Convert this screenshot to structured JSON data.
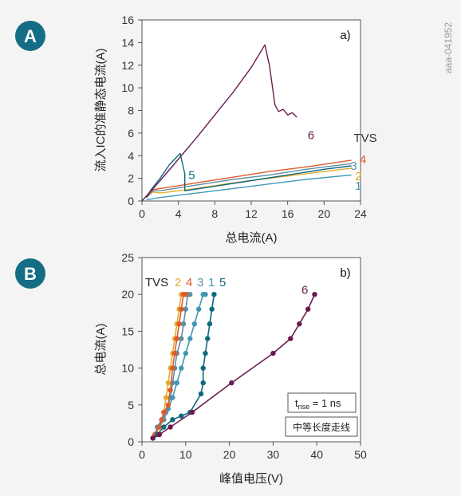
{
  "watermark": "aaa-041952",
  "badges": {
    "a": "A",
    "b": "B"
  },
  "colors": {
    "tvs1": "#3f98b3",
    "tvs2": "#e3ac2b",
    "tvs3": "#5d90a5",
    "tvs4": "#e05a2c",
    "tvs5": "#0e6a7c",
    "tvs6": "#6a1b52",
    "badge": "#146d84"
  },
  "chart_data": [
    {
      "type": "line",
      "panel_tag": "a)",
      "xlabel": "总电流(A)",
      "ylabel": "流入IC的准静态电流(A)",
      "xlim": [
        0,
        24
      ],
      "ylim": [
        0,
        16
      ],
      "xticks": [
        "0",
        "4",
        "8",
        "12",
        "16",
        "20",
        "24"
      ],
      "yticks": [
        "0",
        "2",
        "4",
        "6",
        "8",
        "10",
        "12",
        "14",
        "16"
      ],
      "legend_title": "TVS",
      "series": [
        {
          "name": "1",
          "color_key": "tvs1",
          "x": [
            0.5,
            2,
            6,
            10,
            14,
            18,
            23
          ],
          "y": [
            0.1,
            0.3,
            0.7,
            1.1,
            1.5,
            1.9,
            2.3
          ]
        },
        {
          "name": "2",
          "color_key": "tvs2",
          "x": [
            0.5,
            1.2,
            2,
            6,
            10,
            14,
            18,
            23
          ],
          "y": [
            0.3,
            0.8,
            0.7,
            1.1,
            1.6,
            2.0,
            2.4,
            2.9
          ]
        },
        {
          "name": "3",
          "color_key": "tvs3",
          "x": [
            0.5,
            1.2,
            2,
            6,
            10,
            14,
            18,
            23
          ],
          "y": [
            0.3,
            0.9,
            0.9,
            1.4,
            1.9,
            2.3,
            2.8,
            3.3
          ]
        },
        {
          "name": "4",
          "color_key": "tvs4",
          "x": [
            0.5,
            1.2,
            2,
            6,
            10,
            14,
            18,
            23
          ],
          "y": [
            0.4,
            1.0,
            1.1,
            1.6,
            2.1,
            2.6,
            3.0,
            3.6
          ]
        },
        {
          "name": "5",
          "color_key": "tvs5",
          "x": [
            0.5,
            1,
            2,
            3,
            4.2,
            4.7,
            4.7,
            8,
            12,
            16,
            20,
            23
          ],
          "y": [
            0.3,
            1.0,
            2.0,
            3.2,
            4.2,
            2.4,
            0.9,
            1.3,
            1.8,
            2.3,
            2.8,
            3.1
          ]
        },
        {
          "name": "6",
          "color_key": "tvs6",
          "x": [
            0,
            2,
            4,
            6,
            8,
            10,
            12,
            13.5,
            14,
            14.6,
            15,
            15.5,
            16,
            16.5,
            17
          ],
          "y": [
            0,
            1.8,
            3.7,
            5.6,
            7.6,
            9.6,
            11.8,
            13.8,
            12.0,
            8.5,
            7.9,
            8.1,
            7.6,
            7.8,
            7.4
          ]
        }
      ],
      "label_positions": {
        "1": [
          23.4,
          1.35
        ],
        "2": [
          23.4,
          2.2
        ],
        "3": [
          22.9,
          3.1
        ],
        "4": [
          23.9,
          3.65
        ],
        "5": [
          5.1,
          2.3
        ],
        "6": [
          18.2,
          5.8
        ]
      }
    },
    {
      "type": "line",
      "panel_tag": "b)",
      "xlabel": "峰值电压(V)",
      "ylabel": "总电流(A)",
      "xlim": [
        0,
        50
      ],
      "ylim": [
        0,
        25
      ],
      "xticks": [
        "0",
        "10",
        "20",
        "30",
        "40",
        "50"
      ],
      "yticks": [
        "0",
        "5",
        "10",
        "15",
        "20",
        "25"
      ],
      "legend_title": "TVS",
      "legend_order": [
        "2",
        "4",
        "3",
        "1",
        "5"
      ],
      "annotation_rise": {
        "t": "t",
        "sub": "rise",
        "rest": " = 1 ns"
      },
      "annotation_trace": "中等长度走线",
      "series": [
        {
          "name": "1",
          "color_key": "tvs1",
          "x": [
            2.5,
            3,
            4,
            5,
            6,
            7,
            8,
            9,
            10,
            11,
            12,
            13,
            14,
            14.5
          ],
          "y": [
            0.5,
            1,
            2,
            3,
            4.5,
            6,
            8,
            10,
            12,
            14,
            16,
            18,
            20,
            20
          ]
        },
        {
          "name": "2",
          "color_key": "tvs2",
          "x": [
            2.5,
            3,
            4,
            4.5,
            5,
            5.5,
            6,
            6.5,
            7,
            7.5,
            8,
            8.5,
            9,
            9.5
          ],
          "y": [
            0.5,
            1,
            2,
            3,
            4,
            6,
            8,
            10,
            12,
            14,
            16,
            18,
            20,
            20
          ]
        },
        {
          "name": "3",
          "color_key": "tvs3",
          "x": [
            2.5,
            3,
            3.5,
            4.5,
            5.5,
            6.5,
            7,
            7.5,
            8,
            9,
            9.5,
            10,
            10.5,
            11
          ],
          "y": [
            0.5,
            1,
            2,
            3,
            4,
            6,
            8,
            10,
            12,
            14,
            16,
            18,
            20,
            20
          ]
        },
        {
          "name": "4",
          "color_key": "tvs4",
          "x": [
            2.5,
            3,
            4,
            4.5,
            5,
            6,
            6.5,
            7,
            7.5,
            8,
            8.5,
            9,
            9.5,
            10
          ],
          "y": [
            0.5,
            1,
            2,
            3,
            4,
            5,
            7,
            10,
            12,
            14,
            16,
            18,
            20,
            20
          ]
        },
        {
          "name": "5",
          "color_key": "tvs5",
          "x": [
            2.5,
            3.5,
            5,
            7,
            9,
            11,
            13.5,
            14,
            14,
            14.5,
            15,
            15.5,
            16,
            16.5
          ],
          "y": [
            0.5,
            1,
            2,
            3,
            3.5,
            4,
            6.5,
            8,
            10,
            12,
            14,
            16,
            18,
            20
          ]
        },
        {
          "name": "6",
          "color_key": "tvs6",
          "x": [
            2.5,
            4,
            6.5,
            11.5,
            20.5,
            30,
            34,
            36,
            38,
            39.5
          ],
          "y": [
            0.5,
            1,
            2,
            4,
            8,
            12,
            14,
            16,
            18,
            20
          ]
        }
      ],
      "label_positions": {
        "6": [
          36.5,
          20.6
        ]
      }
    }
  ]
}
